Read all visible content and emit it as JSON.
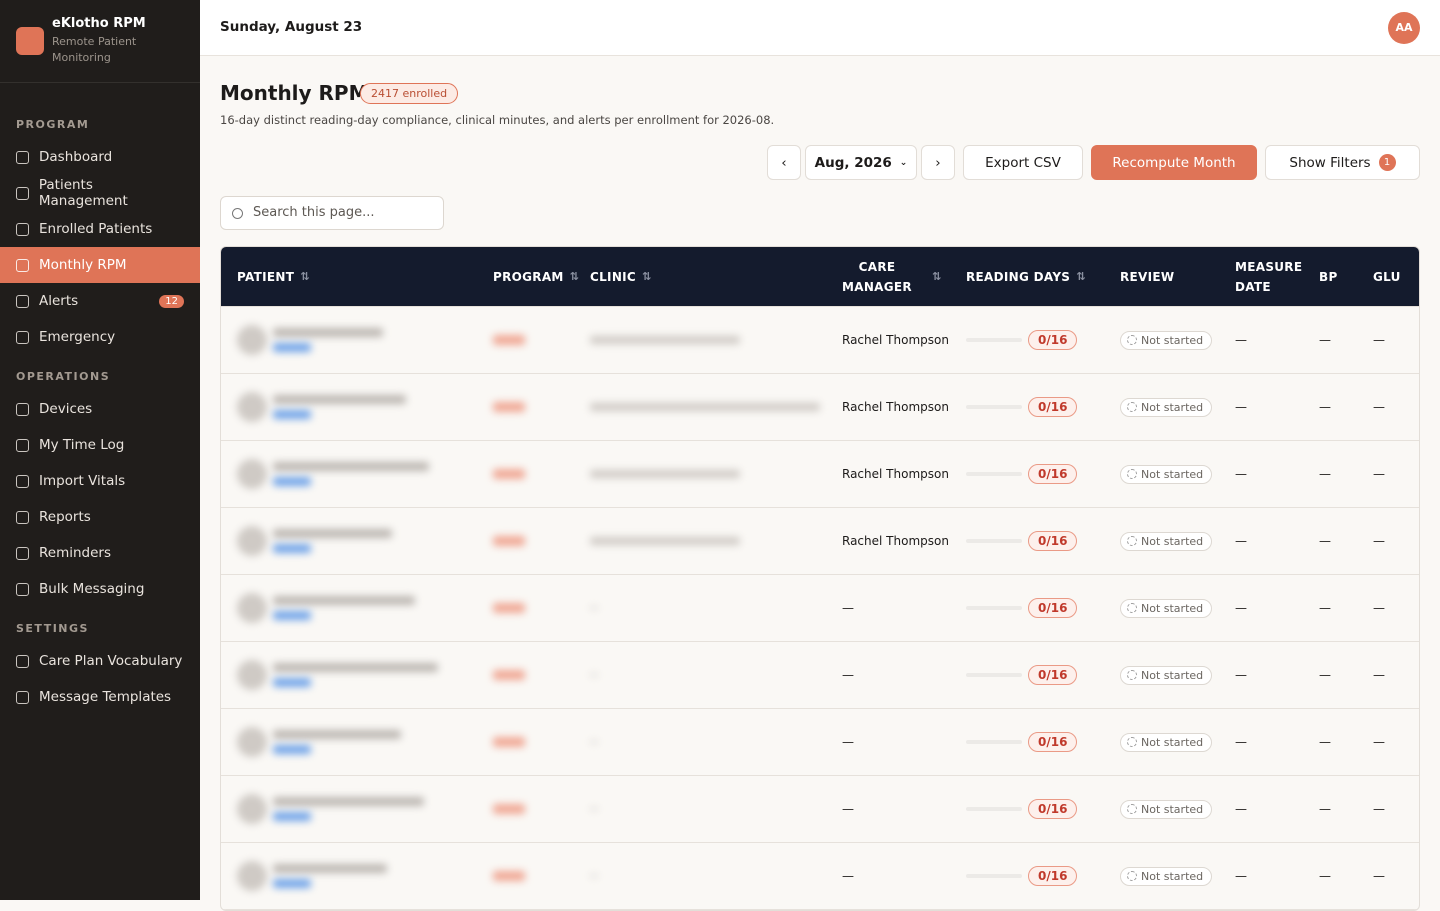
{
  "sidebar": {
    "brand": "eKlotho RPM",
    "tagline": "Remote Patient Monitoring",
    "sections": [
      {
        "title": "PROGRAM",
        "items": [
          {
            "label": "Dashboard"
          },
          {
            "label": "Patients Management"
          },
          {
            "label": "Enrolled Patients"
          },
          {
            "label": "Monthly RPM",
            "active": true
          },
          {
            "label": "Alerts",
            "badge": "12"
          },
          {
            "label": "Emergency"
          }
        ]
      },
      {
        "title": "OPERATIONS",
        "items": [
          {
            "label": "Devices"
          },
          {
            "label": "My Time Log"
          },
          {
            "label": "Import Vitals"
          },
          {
            "label": "Reports"
          },
          {
            "label": "Reminders"
          },
          {
            "label": "Bulk Messaging"
          }
        ]
      },
      {
        "title": "SETTINGS",
        "items": [
          {
            "label": "Care Plan Vocabulary"
          },
          {
            "label": "Message Templates"
          }
        ]
      }
    ]
  },
  "header": {
    "date": "Sunday, August 23",
    "avatar": "AA"
  },
  "page": {
    "title": "Monthly RPM",
    "badge": "2417 enrolled",
    "subtitle": "16-day distinct reading-day compliance, clinical minutes, and alerts per enrollment for 2026-08.",
    "month": "Aug, 2026",
    "export": "Export CSV",
    "recompute": "Recompute Month",
    "filters": "Show Filters",
    "filters_count": "1",
    "search_placeholder": "Search this page..."
  },
  "table": {
    "columns": [
      {
        "label": "PATIENT",
        "sortable": true
      },
      {
        "label": "PROGRAM",
        "sortable": true
      },
      {
        "label": "CLINIC",
        "sortable": true
      },
      {
        "label": "CARE MANAGER",
        "sortable": true
      },
      {
        "label": "READING DAYS",
        "sortable": true
      },
      {
        "label": "REVIEW"
      },
      {
        "label": "MEASURE DATE"
      },
      {
        "label": "BP"
      },
      {
        "label": "GLU"
      }
    ],
    "rows": [
      {
        "care_manager": "Rachel Thompson",
        "reading_days": "0/16",
        "review": "Not started",
        "measure_date": "—",
        "bp": "—",
        "glu": "—"
      },
      {
        "care_manager": "Rachel Thompson",
        "reading_days": "0/16",
        "review": "Not started",
        "measure_date": "—",
        "bp": "—",
        "glu": "—"
      },
      {
        "care_manager": "Rachel Thompson",
        "reading_days": "0/16",
        "review": "Not started",
        "measure_date": "—",
        "bp": "—",
        "glu": "—"
      },
      {
        "care_manager": "Rachel Thompson",
        "reading_days": "0/16",
        "review": "Not started",
        "measure_date": "—",
        "bp": "—",
        "glu": "—"
      },
      {
        "care_manager": "—",
        "reading_days": "0/16",
        "review": "Not started",
        "measure_date": "—",
        "bp": "—",
        "glu": "—"
      },
      {
        "care_manager": "—",
        "reading_days": "0/16",
        "review": "Not started",
        "measure_date": "—",
        "bp": "—",
        "glu": "—"
      },
      {
        "care_manager": "—",
        "reading_days": "0/16",
        "review": "Not started",
        "measure_date": "—",
        "bp": "—",
        "glu": "—"
      },
      {
        "care_manager": "—",
        "reading_days": "0/16",
        "review": "Not started",
        "measure_date": "—",
        "bp": "—",
        "glu": "—"
      },
      {
        "care_manager": "—",
        "reading_days": "0/16",
        "review": "Not started",
        "measure_date": "—",
        "bp": "—",
        "glu": "—"
      }
    ]
  }
}
